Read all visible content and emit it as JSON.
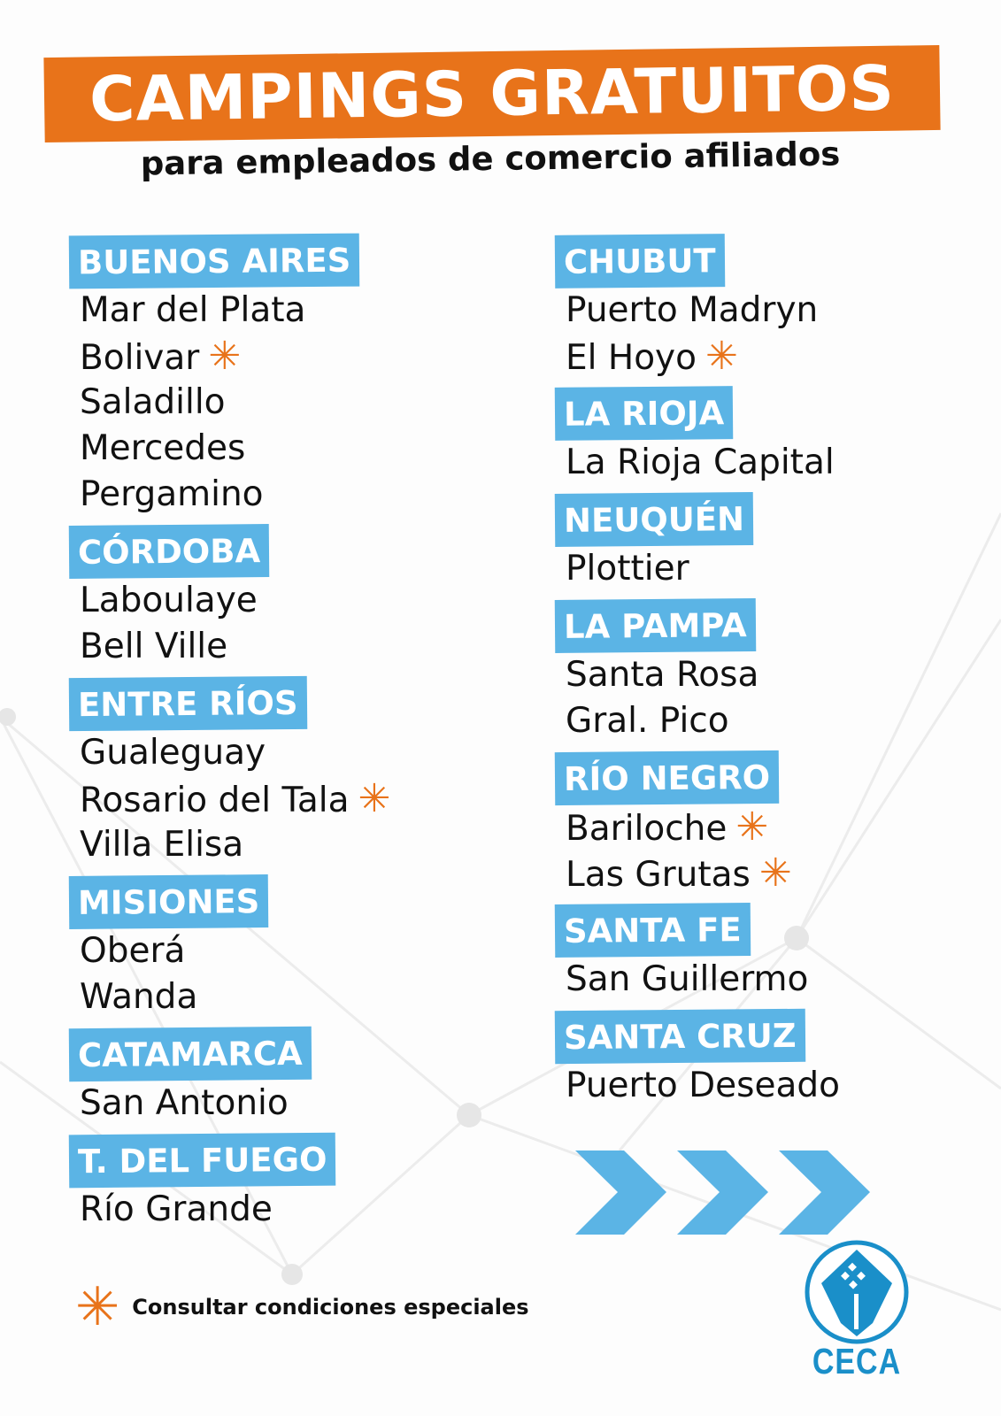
{
  "title": "CAMPINGS GRATUITOS",
  "subtitle": "para empleados de comercio afiliados",
  "colors": {
    "orange": "#e8731a",
    "blue": "#5bb4e5",
    "logo_blue": "#1a8fc9"
  },
  "left": [
    {
      "province": "BUENOS AIRES",
      "places": [
        {
          "name": "Mar del Plata"
        },
        {
          "name": "Bolivar",
          "special": "✳"
        },
        {
          "name": "Saladillo"
        },
        {
          "name": "Mercedes"
        },
        {
          "name": "Pergamino"
        }
      ]
    },
    {
      "province": "CÓRDOBA",
      "places": [
        {
          "name": "Laboulaye"
        },
        {
          "name": "Bell Ville"
        }
      ]
    },
    {
      "province": "ENTRE RÍOS",
      "places": [
        {
          "name": "Gualeguay"
        },
        {
          "name": "Rosario del Tala",
          "special": "✳"
        },
        {
          "name": "Villa Elisa"
        }
      ]
    },
    {
      "province": "MISIONES",
      "places": [
        {
          "name": "Oberá"
        },
        {
          "name": "Wanda"
        }
      ]
    },
    {
      "province": "CATAMARCA",
      "places": [
        {
          "name": "San Antonio"
        }
      ]
    },
    {
      "province": "T. DEL FUEGO",
      "places": [
        {
          "name": "Río Grande"
        }
      ]
    }
  ],
  "right": [
    {
      "province": "CHUBUT",
      "places": [
        {
          "name": "Puerto Madryn"
        },
        {
          "name": "El Hoyo",
          "special": "✳"
        }
      ]
    },
    {
      "province": "LA RIOJA",
      "places": [
        {
          "name": "La Rioja Capital"
        }
      ]
    },
    {
      "province": "NEUQUÉN",
      "places": [
        {
          "name": "Plottier"
        }
      ]
    },
    {
      "province": "LA PAMPA",
      "places": [
        {
          "name": "Santa Rosa"
        },
        {
          "name": "Gral. Pico"
        }
      ]
    },
    {
      "province": "RÍO NEGRO",
      "places": [
        {
          "name": "Bariloche",
          "special": "✳"
        },
        {
          "name": "Las Grutas",
          "special": "✳"
        }
      ]
    },
    {
      "province": "SANTA FE",
      "places": [
        {
          "name": "San Guillermo"
        }
      ]
    },
    {
      "province": "SANTA CRUZ",
      "places": [
        {
          "name": "Puerto Deseado"
        }
      ]
    }
  ],
  "footnote": {
    "symbol": "✳",
    "text": "Consultar condiciones especiales"
  },
  "logo": {
    "name": "CECA"
  },
  "icons": {
    "arrows": "chevron-right-icon x3",
    "logo": "ceca-hands-house-logo"
  }
}
